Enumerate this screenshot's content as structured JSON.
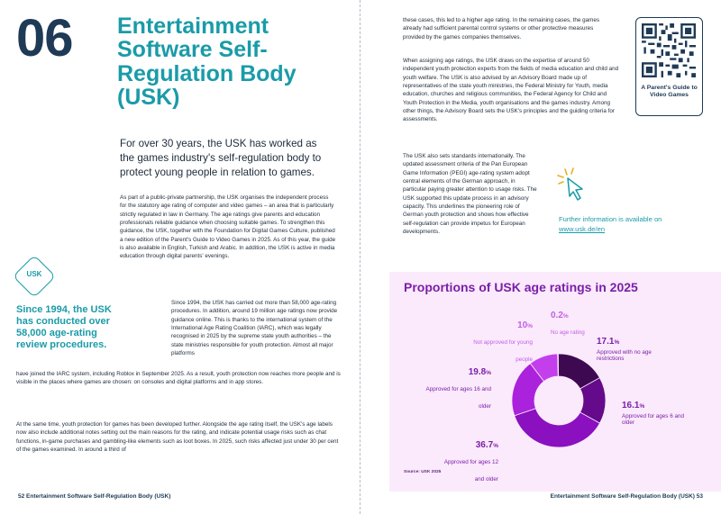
{
  "left_page": {
    "chapter_number": "06",
    "chapter_title": "Entertainment Software Self-Regulation Body (USK)",
    "lead": "For over 30 years, the USK has worked as the games industry's self-regulation body to protect young people in relation to games.",
    "para1": "As part of a public-private partnership, the USK organises the independent process for the statutory age rating of computer and video games – an area that is particularly strictly regulated in law in Germany. The age ratings give parents and education professionals reliable guidance when choosing suitable games. To strengthen this guidance, the USK, together with the Foundation for Digital Games Culture, published a new edition of the Parent's Guide to Video Games in 2025. As of this year, the guide is also available in English, Turkish and Arabic. In addition, the USK is active in media education through digital parents' evenings.",
    "usk_logo_text": "USK",
    "pullquote": "Since 1994, the USK has conducted over 58,000 age-rating review procedures.",
    "para2": "Since 1994, the USK has carried out more than 58,000 age-rating procedures. In addition, around 19 million age ratings now provide guidance online. This is thanks to the international system of the International Age Rating Coalition (IARC), which was legally recognised in 2025 by the supreme state youth authorities – the state ministries responsible for youth protection. Almost all major platforms",
    "para3": "have joined the IARC system, including Roblox in September 2025. As a result, youth protection now reaches more people and is visible in the places where games are chosen: on consoles and digital platforms and in app stores.",
    "para4": "At the same time, youth protection for games has been developed further. Alongside the age rating itself, the USK's age labels now also include additional notes setting out the main reasons for the rating, and indicate potential usage risks such as chat functions, in-game purchases and gambling-like elements such as loot boxes. In 2025, such risks affected just under 30 per cent of the games examined. In around a third of",
    "footer": "52   Entertainment Software Self-Regulation Body (USK)"
  },
  "right_page": {
    "rtext1": "these cases, this led to a higher age rating. In the remaining cases, the games already had sufficient parental control systems or other protective measures provided by the games companies themselves.",
    "rtext2": "When assigning age ratings, the USK draws on the expertise of around 50 independent youth protection experts from the fields of media education and child and youth welfare. The USK is also advised by an Advisory Board made up of representatives of the state youth ministries, the Federal Ministry for Youth, media education, churches and religious communities, the Federal Agency for Child and Youth Protection in the Media, youth organisations and the games industry. Among other things, the Advisory Board sets the USK's principles and the guiding criteria for assessments.",
    "rtext3": "The USK also sets standards internationally. The updated assessment criteria of the Pan European Game Information (PEGI) age-rating system adopt central elements of the German approach, in particular paying greater attention to usage risks. The USK supported this update process in an advisory capacity. This underlines the pioneering role of German youth protection and shows how effective self-regulation can provide impetus for European developments.",
    "qr_caption": "A Parent's Guide to Video Games",
    "further_info_text": "Further information is available on",
    "further_info_link": "www.usk.de/en",
    "footer": "Entertainment Software Self-Regulation Body (USK)   53"
  },
  "colors": {
    "teal": "#1a9ba8",
    "navy": "#1e3a56",
    "purple": "#7a1fa8",
    "panel": "#fbeafc"
  },
  "icons": [
    "usk-logo",
    "qr-code-icon",
    "pointer-click-icon"
  ],
  "chart_data": {
    "type": "pie",
    "donut": true,
    "title": "Proportions of USK age ratings in 2025",
    "source": "Source: USK 2025",
    "slices": [
      {
        "pct": "17.1",
        "label": "Approved with no age restrictions",
        "value": 17.1,
        "color": "#3d0a52"
      },
      {
        "pct": "16.1",
        "label": "Approved for ages 6 and older",
        "value": 16.1,
        "color": "#640a8a"
      },
      {
        "pct": "36.7",
        "label": "Approved for ages 12 and older",
        "value": 36.7,
        "color": "#8a10c0"
      },
      {
        "pct": "19.8",
        "label": "Approved for ages 16 and older",
        "value": 19.8,
        "color": "#aa22dc"
      },
      {
        "pct": "10",
        "label": "Not approved for young people",
        "value": 10,
        "color": "#c43fec"
      },
      {
        "pct": "0.2",
        "label": "No age rating",
        "value": 0.2,
        "color": "#d77ff0"
      }
    ]
  }
}
